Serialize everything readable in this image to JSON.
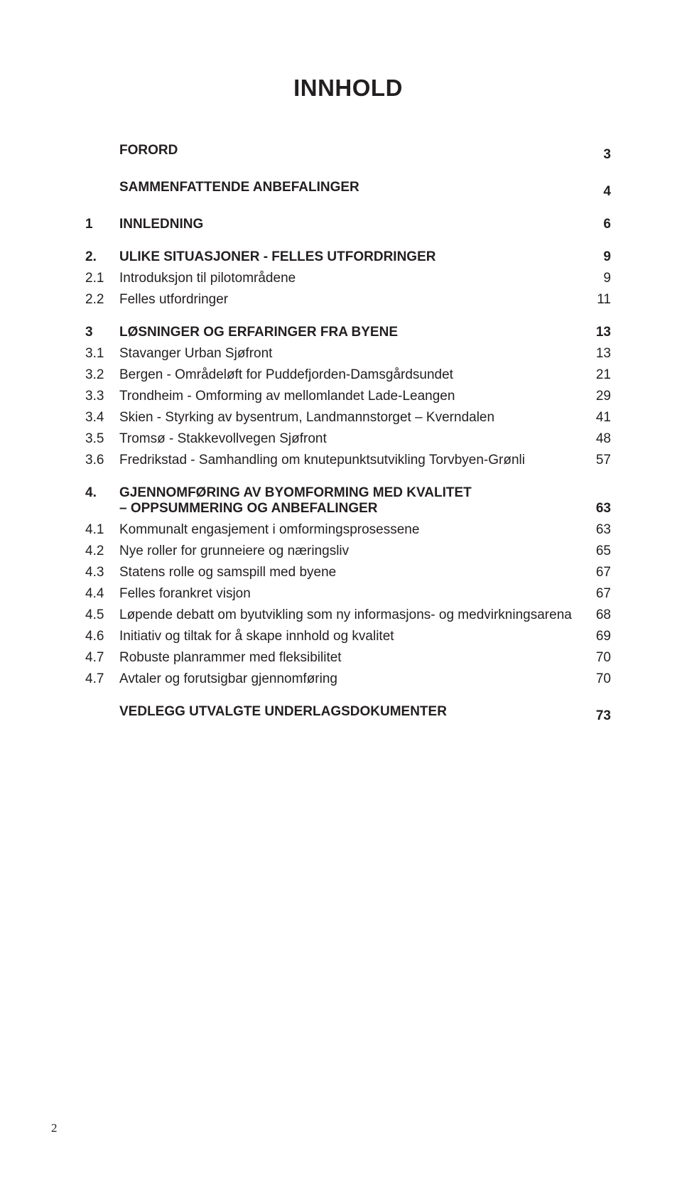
{
  "title": "INNHOLD",
  "footer_page": "2",
  "sections": [
    {
      "num": "",
      "text": "FORORD",
      "page": "3",
      "bold": true,
      "gap": true
    },
    {
      "num": "",
      "text": "SAMMENFATTENDE ANBEFALINGER",
      "page": "4",
      "bold": true,
      "gap": true
    },
    {
      "num": "1",
      "text": "INNLEDNING",
      "page": "6",
      "bold": true,
      "gap": true
    },
    {
      "num": "2.",
      "text": "ULIKE SITUASJONER - FELLES UTFORDRINGER",
      "page": "9",
      "bold": true
    },
    {
      "num": "2.1",
      "text": "Introduksjon til pilotområdene",
      "page": "9",
      "bold": false
    },
    {
      "num": "2.2",
      "text": "Felles utfordringer",
      "page": "11",
      "bold": false,
      "gap": true
    },
    {
      "num": "3",
      "text": "LØSNINGER OG ERFARINGER FRA BYENE",
      "page": "13",
      "bold": true
    },
    {
      "num": "3.1",
      "text": "Stavanger Urban Sjøfront",
      "page": "13",
      "bold": false
    },
    {
      "num": "3.2",
      "text": "Bergen - Områdeløft for Puddefjorden-Damsgårdsundet",
      "page": "21",
      "bold": false
    },
    {
      "num": "3.3",
      "text": "Trondheim - Omforming av mellomlandet Lade-Leangen",
      "page": "29",
      "bold": false
    },
    {
      "num": "3.4",
      "text": "Skien - Styrking av bysentrum, Landmannstorget – Kverndalen",
      "page": "41",
      "bold": false
    },
    {
      "num": "3.5",
      "text": "Tromsø - Stakkevollvegen Sjøfront",
      "page": "48",
      "bold": false
    },
    {
      "num": "3.6",
      "text": "Fredrikstad - Samhandling om knutepunktsutvikling Torvbyen-Grønli",
      "page": "57",
      "bold": false,
      "gap": true
    },
    {
      "num": "4.",
      "text": "GJENNOMFØRING AV BYOMFORMING MED KVALITET",
      "text2": "– OPPSUMMERING OG ANBEFALINGER",
      "page": "63",
      "bold": true,
      "multiline": true
    },
    {
      "num": "4.1",
      "text": "Kommunalt engasjement i omformingsprosessene",
      "page": "63",
      "bold": false
    },
    {
      "num": "4.2",
      "text": "Nye roller for grunneiere og næringsliv",
      "page": "65",
      "bold": false
    },
    {
      "num": "4.3",
      "text": "Statens rolle og samspill med byene",
      "page": "67",
      "bold": false
    },
    {
      "num": "4.4",
      "text": "Felles forankret visjon",
      "page": "67",
      "bold": false
    },
    {
      "num": "4.5",
      "text": "Løpende debatt om byutvikling som ny informasjons- og medvirkningsarena",
      "page": "68",
      "bold": false
    },
    {
      "num": "4.6",
      "text": "Initiativ og tiltak for å skape innhold og kvalitet",
      "page": "69",
      "bold": false
    },
    {
      "num": "4.7",
      "text": "Robuste planrammer med fleksibilitet",
      "page": "70",
      "bold": false
    },
    {
      "num": "4.7",
      "text": "Avtaler og forutsigbar gjennomføring",
      "page": "70",
      "bold": false,
      "gap": true
    },
    {
      "num": "",
      "text": "VEDLEGG UTVALGTE UNDERLAGSDOKUMENTER",
      "page": "73",
      "bold": true
    }
  ]
}
